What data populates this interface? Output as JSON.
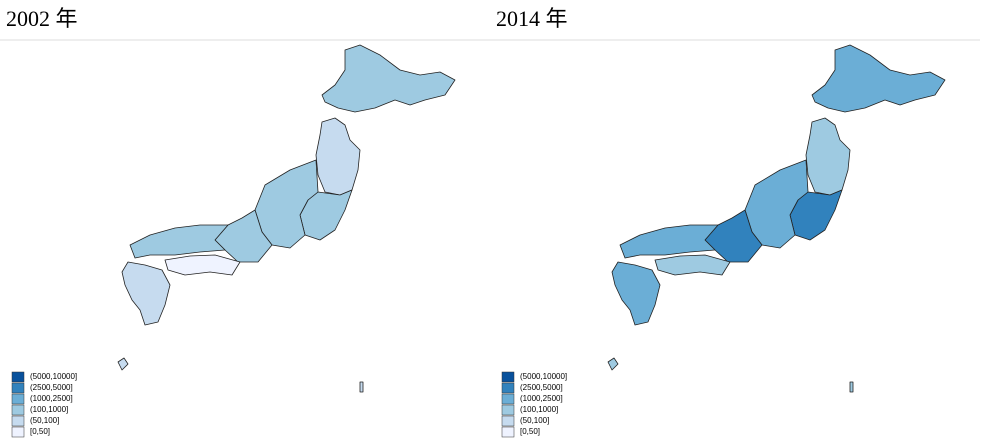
{
  "panels": [
    {
      "title": "2002 年"
    },
    {
      "title": "2014 年"
    }
  ],
  "legend": [
    {
      "label": "(5000,10000]",
      "color": "#08519c"
    },
    {
      "label": "(2500,5000]",
      "color": "#3182bd"
    },
    {
      "label": "(1000,2500]",
      "color": "#6baed6"
    },
    {
      "label": "(100,1000]",
      "color": "#9ecae1"
    },
    {
      "label": "(50,100]",
      "color": "#c6dbef"
    },
    {
      "label": "[0,50]",
      "color": "#eff3ff"
    }
  ]
}
